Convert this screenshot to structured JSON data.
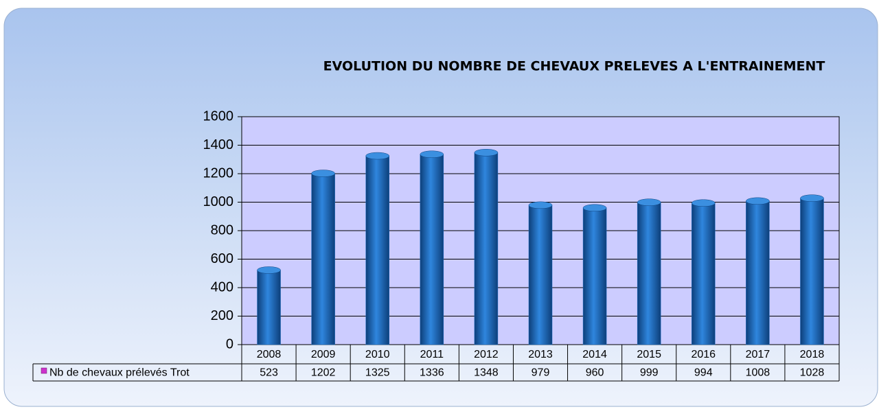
{
  "chart_data": {
    "type": "bar",
    "title": "EVOLUTION DU NOMBRE DE CHEVAUX PRELEVES A L'ENTRAINEMENT",
    "categories": [
      "2008",
      "2009",
      "2010",
      "2011",
      "2012",
      "2013",
      "2014",
      "2015",
      "2016",
      "2017",
      "2018"
    ],
    "series": [
      {
        "name": "Nb de chevaux prélevés Trot",
        "color": "#1c6cc0",
        "values": [
          523,
          1202,
          1325,
          1336,
          1348,
          979,
          960,
          999,
          994,
          1008,
          1028
        ]
      }
    ],
    "ylim": [
      0,
      1600
    ],
    "yticks": [
      0,
      200,
      400,
      600,
      800,
      1000,
      1200,
      1400,
      1600
    ],
    "grid": true
  }
}
